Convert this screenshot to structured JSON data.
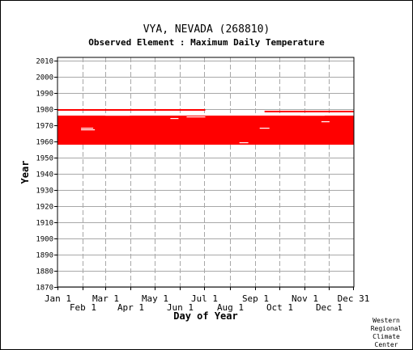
{
  "chart_data": {
    "type": "heatmap",
    "title": "VYA, NEVADA   (268810)",
    "subtitle": "Observed Element : Maximum Daily Temperature",
    "xlabel": "Day of Year",
    "ylabel": "Year",
    "ylim": [
      1870,
      2012
    ],
    "xlim": [
      1,
      366
    ],
    "yticks": [
      1870,
      1880,
      1890,
      1900,
      1910,
      1920,
      1930,
      1940,
      1950,
      1960,
      1970,
      1980,
      1990,
      2000,
      2010
    ],
    "xticks_upper": [
      {
        "label": "Jan 1",
        "day": 1
      },
      {
        "label": "Mar 1",
        "day": 60
      },
      {
        "label": "May 1",
        "day": 121
      },
      {
        "label": "Jul 1",
        "day": 182
      },
      {
        "label": "Sep 1",
        "day": 244
      },
      {
        "label": "Nov 1",
        "day": 305
      },
      {
        "label": "Dec 31",
        "day": 365
      }
    ],
    "xticks_lower": [
      {
        "label": "Feb 1",
        "day": 32
      },
      {
        "label": "Apr 1",
        "day": 91
      },
      {
        "label": "Jun 1",
        "day": 152
      },
      {
        "label": "Aug 1",
        "day": 213
      },
      {
        "label": "Oct 1",
        "day": 274
      },
      {
        "label": "Dec 1",
        "day": 335
      }
    ],
    "grid": true,
    "mark_color": "#ff0000",
    "bands": [
      {
        "from_year": 1958,
        "to_year": 1976,
        "from_day": 1,
        "to_day": 366
      },
      {
        "from_year": 1979,
        "to_year": 1980,
        "from_day": 1,
        "to_day": 183
      },
      {
        "from_year": 1978,
        "to_year": 1979,
        "from_day": 256,
        "to_day": 366
      }
    ],
    "gaps": [
      {
        "year": 1968,
        "from_day": 30,
        "to_day": 45
      },
      {
        "year": 1967,
        "from_day": 30,
        "to_day": 47
      },
      {
        "year": 1976,
        "from_day": 60,
        "to_day": 90
      },
      {
        "year": 1975,
        "from_day": 160,
        "to_day": 183
      },
      {
        "year": 1974,
        "from_day": 140,
        "to_day": 150
      },
      {
        "year": 1968,
        "from_day": 250,
        "to_day": 262
      },
      {
        "year": 1976,
        "from_day": 300,
        "to_day": 330
      },
      {
        "year": 1972,
        "from_day": 326,
        "to_day": 336
      },
      {
        "year": 1959,
        "from_day": 225,
        "to_day": 236
      }
    ],
    "credit": [
      "Western",
      "Regional",
      "Climate",
      "Center"
    ]
  }
}
